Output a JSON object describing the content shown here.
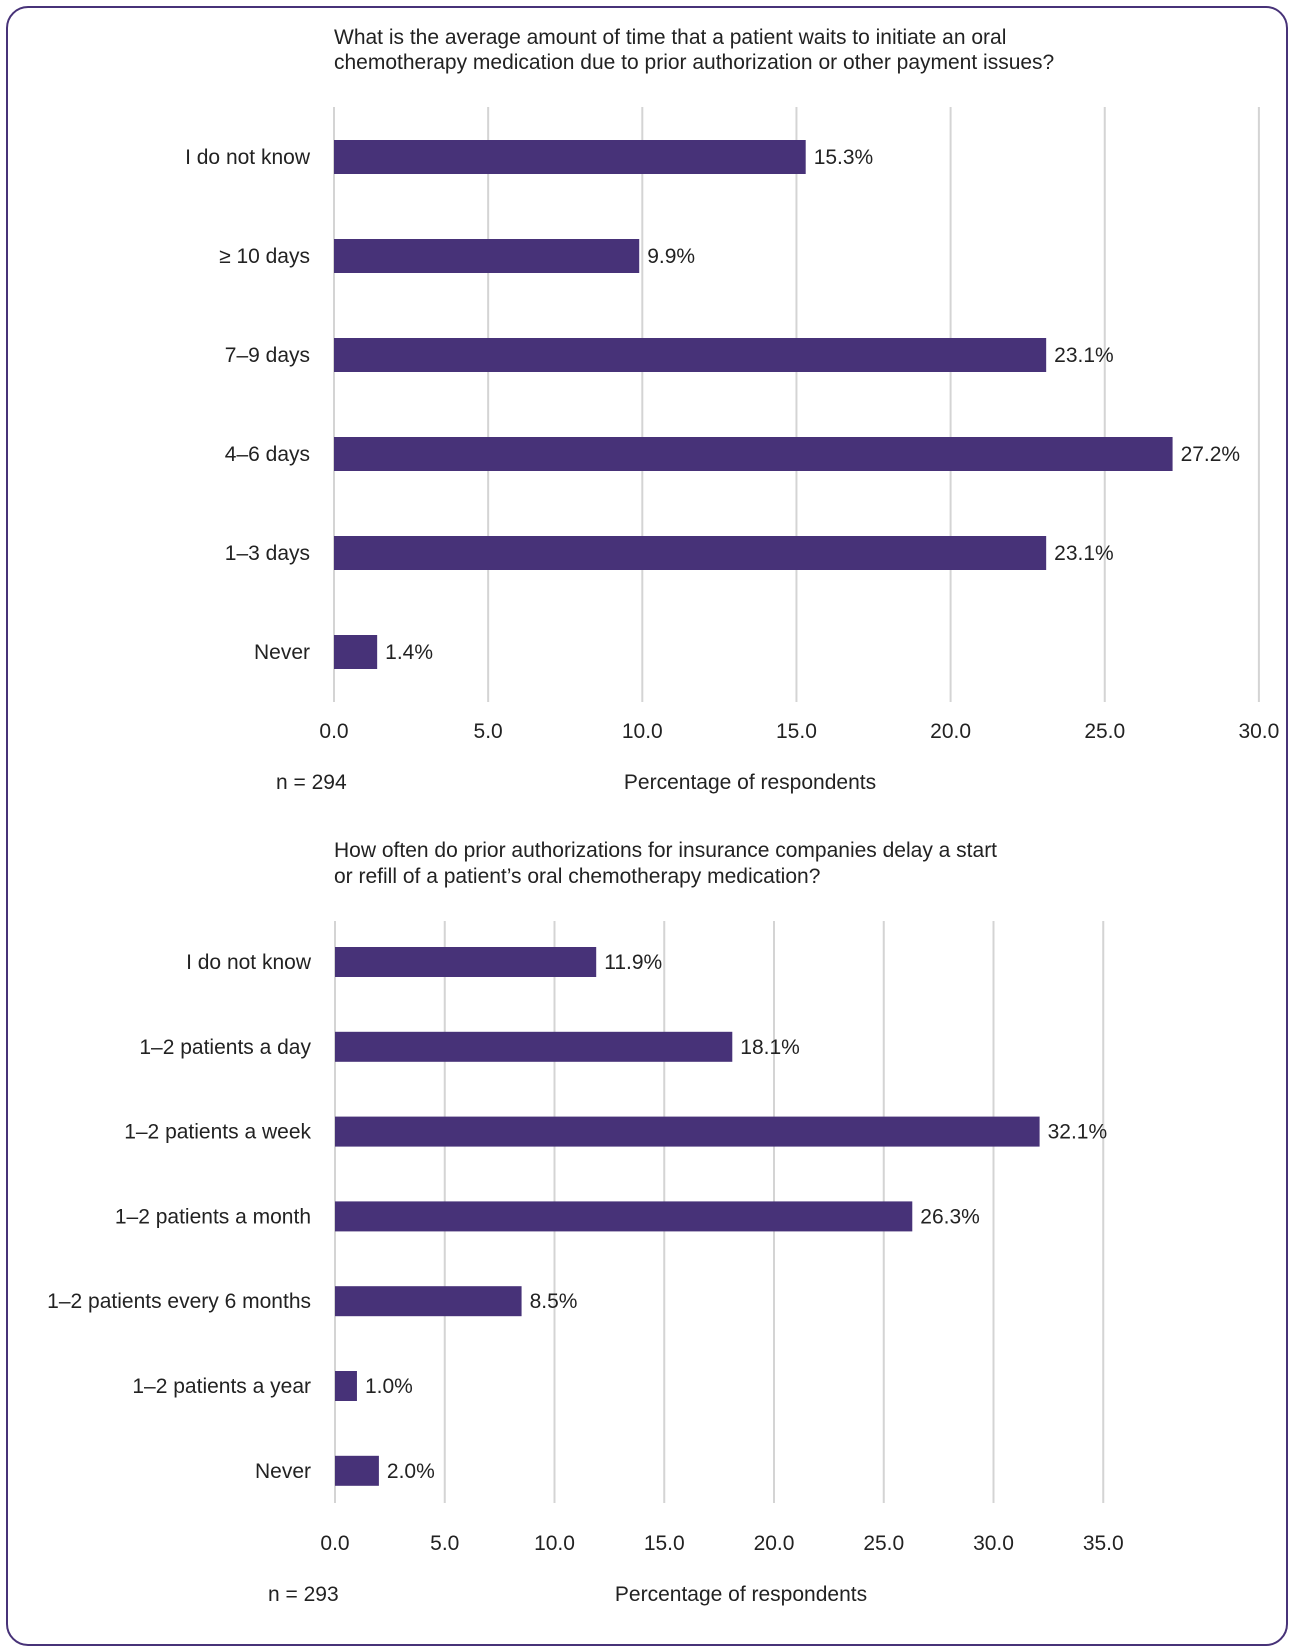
{
  "chart_data": [
    {
      "type": "bar",
      "orientation": "horizontal",
      "title_lines": [
        "What is the average amount of time that a patient waits to initiate an oral",
        "chemotherapy medication due to prior authorization or other payment issues?"
      ],
      "categories": [
        "I do not know",
        "≥ 10 days",
        "7–9 days",
        "4–6 days",
        "1–3 days",
        "Never"
      ],
      "values": [
        15.3,
        9.9,
        23.1,
        27.2,
        23.1,
        1.4
      ],
      "value_labels": [
        "15.3%",
        "9.9%",
        "23.1%",
        "27.2%",
        "23.1%",
        "1.4%"
      ],
      "xticks": [
        "0.0",
        "5.0",
        "10.0",
        "15.0",
        "20.0",
        "25.0",
        "30.0"
      ],
      "xlim": [
        0,
        30
      ],
      "xlabel": "Percentage of respondents",
      "note": "n = 294",
      "grid": true,
      "bar_color": "#473278"
    },
    {
      "type": "bar",
      "orientation": "horizontal",
      "title_lines": [
        "How often do prior authorizations for insurance companies delay a start",
        "or refill of a patient’s oral chemotherapy medication?"
      ],
      "categories": [
        "I do not know",
        "1–2 patients a day",
        "1–2 patients a week",
        "1–2 patients a month",
        "1–2 patients every 6 months",
        "1–2 patients a year",
        "Never"
      ],
      "values": [
        11.9,
        18.1,
        32.1,
        26.3,
        8.5,
        1.0,
        2.0
      ],
      "value_labels": [
        "11.9%",
        "18.1%",
        "32.1%",
        "26.3%",
        "8.5%",
        "1.0%",
        "2.0%"
      ],
      "xticks": [
        "0.0",
        "5.0",
        "10.0",
        "15.0",
        "20.0",
        "25.0",
        "30.0",
        "35.0"
      ],
      "xlim": [
        0,
        35
      ],
      "xlabel": "Percentage of respondents",
      "note": "n = 293",
      "grid": true,
      "bar_color": "#473278"
    }
  ]
}
